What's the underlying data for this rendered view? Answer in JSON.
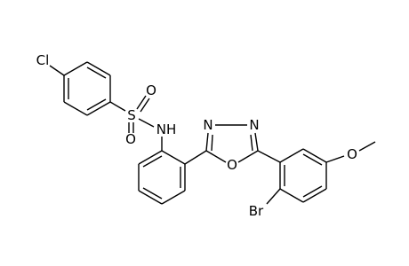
{
  "atoms": [
    "Cl",
    "S",
    "O",
    "O",
    "NH",
    "N",
    "N",
    "O",
    "Br",
    "O"
  ]
}
